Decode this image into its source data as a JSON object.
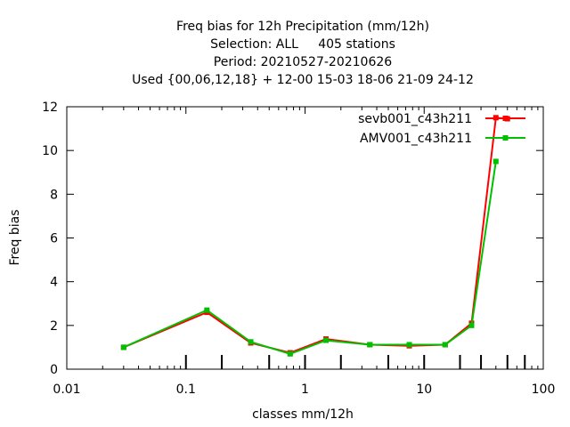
{
  "chart_data": {
    "type": "line",
    "title_lines": [
      "Freq bias  for 12h Precipitation (mm/12h)",
      "Selection: ALL     405 stations",
      "Period: 20210527-20210626",
      "Used {00,06,12,18} + 12-00 15-03 18-06 21-09 24-12"
    ],
    "xlabel": "classes mm/12h",
    "ylabel": "Freq bias",
    "x_scale": "log",
    "xlim": [
      0.01,
      100
    ],
    "ylim": [
      0,
      12
    ],
    "x_ticks": [
      "0.01",
      "0.1",
      "1",
      "10",
      "100"
    ],
    "y_ticks": [
      "0",
      "2",
      "4",
      "6",
      "8",
      "10",
      "12"
    ],
    "class_limits": [
      0.1,
      0.2,
      0.5,
      1,
      2,
      5,
      10,
      20,
      30,
      50,
      70
    ],
    "legend_position": "top-right",
    "series": [
      {
        "name": "sevb001_c43h211",
        "color": "#ff0000",
        "x": [
          0.03,
          0.15,
          0.35,
          0.75,
          1.5,
          3.5,
          7.5,
          15,
          25,
          40,
          50
        ],
        "y": [
          1.0,
          2.6,
          1.2,
          0.75,
          1.38,
          1.12,
          1.07,
          1.12,
          2.1,
          11.5,
          11.45
        ]
      },
      {
        "name": "AMV001_c43h211",
        "color": "#00c000",
        "x": [
          0.03,
          0.15,
          0.35,
          0.75,
          1.5,
          3.5,
          7.5,
          15,
          25,
          40
        ],
        "y": [
          1.0,
          2.7,
          1.25,
          0.7,
          1.32,
          1.12,
          1.12,
          1.12,
          2.0,
          9.5
        ]
      }
    ]
  }
}
